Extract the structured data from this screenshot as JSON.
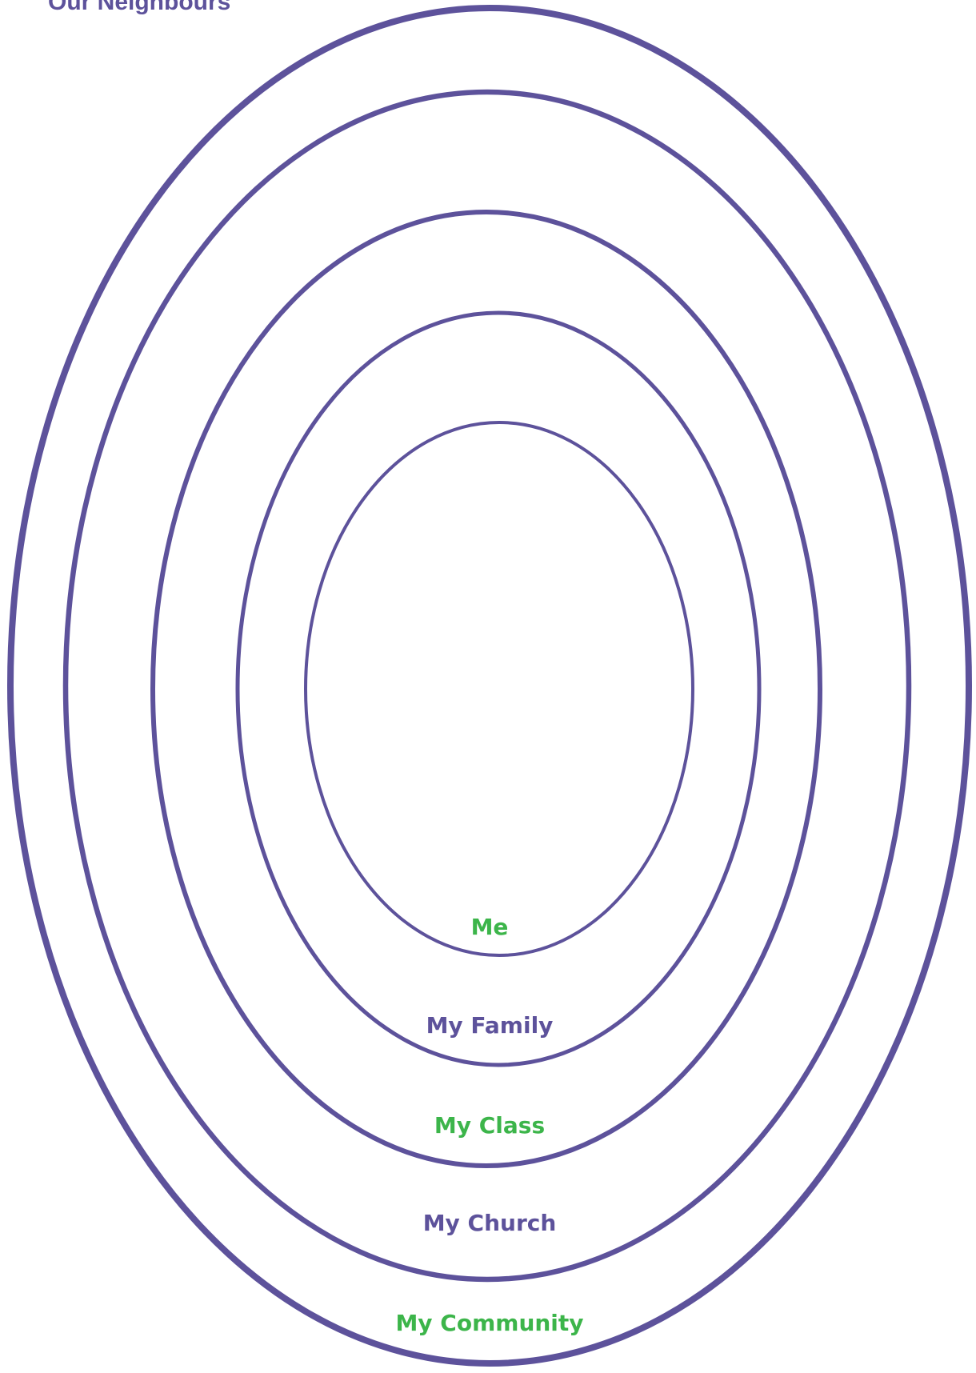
{
  "title": "Our Neighbours",
  "colors": {
    "purple": "#5d529b",
    "green": "#3cb54a"
  },
  "rings": [
    {
      "label": "My Community",
      "color": "green"
    },
    {
      "label": "My Church",
      "color": "purple"
    },
    {
      "label": "My Class",
      "color": "green"
    },
    {
      "label": "My Family",
      "color": "purple"
    },
    {
      "label": "Me",
      "color": "green"
    }
  ]
}
